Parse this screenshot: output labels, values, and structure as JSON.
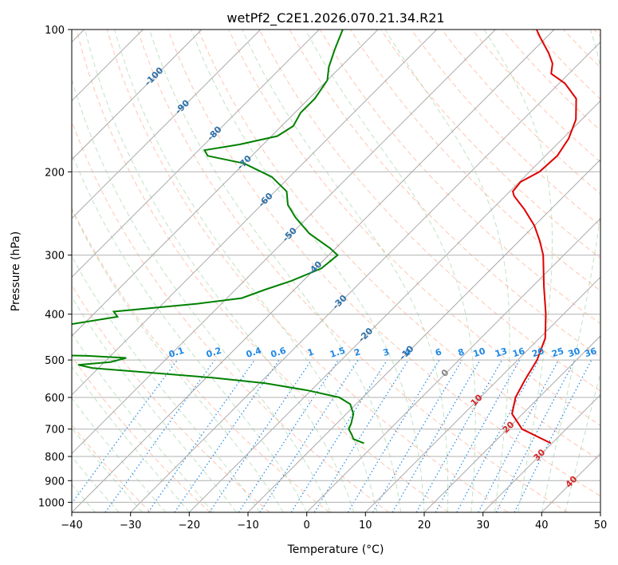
{
  "chart_data": {
    "type": "line",
    "title": "wetPf2_C2E1.2026.070.21.34.R21",
    "xlabel": "Temperature (°C)",
    "ylabel": "Pressure (hPa)",
    "xlim": [
      -40,
      50
    ],
    "ylim": [
      1050,
      100
    ],
    "y_scale": "log",
    "skew": true,
    "grid": true,
    "x_ticks": [
      "−40",
      "−30",
      "−20",
      "−10",
      "0",
      "10",
      "20",
      "30",
      "40",
      "50"
    ],
    "y_ticks": [
      "100",
      "200",
      "300",
      "400",
      "500",
      "600",
      "700",
      "800",
      "900",
      "1000"
    ],
    "series": [
      {
        "color": "#e00000",
        "points": [
          [
            750,
            29.8
          ],
          [
            700,
            22.5
          ],
          [
            650,
            18.2
          ],
          [
            600,
            16.0
          ],
          [
            550,
            14.6
          ],
          [
            500,
            13.3
          ],
          [
            450,
            11.0
          ],
          [
            400,
            7.0
          ],
          [
            350,
            2.0
          ],
          [
            300,
            -3.5
          ],
          [
            280,
            -6.5
          ],
          [
            260,
            -10.0
          ],
          [
            240,
            -14.5
          ],
          [
            225,
            -18.5
          ],
          [
            220,
            -19.5
          ],
          [
            210,
            -19.8
          ],
          [
            200,
            -18.3
          ],
          [
            185,
            -18.0
          ],
          [
            170,
            -19.0
          ],
          [
            155,
            -21.0
          ],
          [
            140,
            -24.5
          ],
          [
            130,
            -29.0
          ],
          [
            124,
            -33.0
          ],
          [
            118,
            -34.5
          ],
          [
            112,
            -37.0
          ],
          [
            104,
            -41.0
          ],
          [
            100,
            -43.0
          ]
        ]
      },
      {
        "color": "#008000",
        "points": [
          [
            750,
            -2.0
          ],
          [
            735,
            -4.5
          ],
          [
            720,
            -5.5
          ],
          [
            700,
            -7.0
          ],
          [
            680,
            -7.6
          ],
          [
            650,
            -8.8
          ],
          [
            620,
            -11.0
          ],
          [
            600,
            -14.0
          ],
          [
            580,
            -20.5
          ],
          [
            560,
            -29.0
          ],
          [
            545,
            -39.0
          ],
          [
            530,
            -52.0
          ],
          [
            520,
            -61.0
          ],
          [
            512,
            -64.0
          ],
          [
            505,
            -59.0
          ],
          [
            495,
            -57.0
          ],
          [
            490,
            -64.0
          ],
          [
            487,
            -76.0
          ],
          [
            460,
            -85.0
          ],
          [
            440,
            -80.0
          ],
          [
            420,
            -72.0
          ],
          [
            405,
            -65.5
          ],
          [
            395,
            -67.0
          ],
          [
            380,
            -54.0
          ],
          [
            370,
            -47.5
          ],
          [
            355,
            -45.0
          ],
          [
            340,
            -42.0
          ],
          [
            320,
            -39.0
          ],
          [
            300,
            -38.5
          ],
          [
            290,
            -41.0
          ],
          [
            270,
            -47.0
          ],
          [
            250,
            -52.0
          ],
          [
            235,
            -55.5
          ],
          [
            220,
            -58.0
          ],
          [
            205,
            -63.0
          ],
          [
            192,
            -70.0
          ],
          [
            185,
            -77.5
          ],
          [
            180,
            -79.0
          ],
          [
            175,
            -74.0
          ],
          [
            168,
            -69.0
          ],
          [
            160,
            -68.0
          ],
          [
            150,
            -69.0
          ],
          [
            140,
            -69.0
          ],
          [
            128,
            -70.0
          ],
          [
            120,
            -72.0
          ],
          [
            110,
            -74.0
          ],
          [
            100,
            -76.0
          ]
        ]
      }
    ],
    "isotherm_labels": [
      "-100",
      "-90",
      "-80",
      "-70",
      "-60",
      "-50",
      "-40",
      "-30",
      "-20",
      "-10",
      "0",
      "10",
      "20",
      "30",
      "40"
    ],
    "mixing_ratio_labels": [
      "0.1",
      "0.2",
      "0.4",
      "0.6",
      "1",
      "1.5",
      "2",
      "3",
      "4",
      "6",
      "8",
      "10",
      "13",
      "16",
      "20",
      "25",
      "30",
      "36"
    ]
  },
  "colors": {
    "temperature": "#e00000",
    "dewpoint": "#008000",
    "isotherm_cold": "#2c6fa8",
    "isotherm_warm": "#d62728",
    "isotherm_zero": "#808080",
    "mixing_ratio": "#1e88e5",
    "dry_adiabat": "#ff7f50",
    "moist_adiabat": "#4caf50"
  }
}
